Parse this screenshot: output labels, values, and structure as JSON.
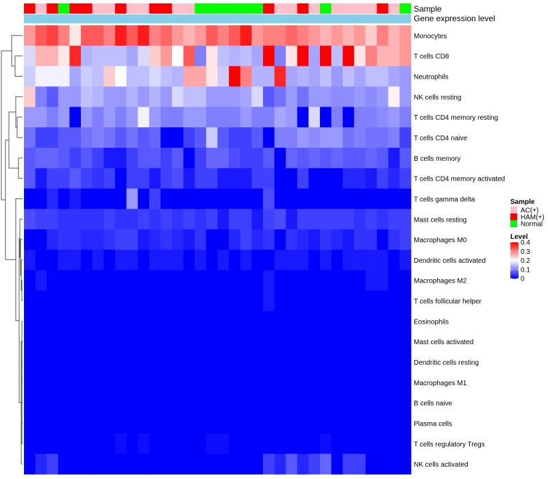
{
  "chart_data": {
    "type": "heatmap",
    "annotation_rows": {
      "sample": "Sample",
      "expression": "Gene expression level"
    },
    "n_columns": 34,
    "sample_groups": [
      "H",
      "A",
      "H",
      "N",
      "H",
      "H",
      "A",
      "A",
      "H",
      "A",
      "A",
      "H",
      "H",
      "A",
      "A",
      "N",
      "N",
      "N",
      "N",
      "N",
      "N",
      "H",
      "A",
      "A",
      "H",
      "A",
      "N",
      "A",
      "A",
      "A",
      "A",
      "H",
      "A",
      "N"
    ],
    "rows": [
      "Monocytes",
      "T cells CD8",
      "Neutrophils",
      "NK cells resting",
      "T cells CD4 memory resting",
      "T cells CD4 naive",
      "B cells memory",
      "T cells CD4 memory activated",
      "T cells gamma delta",
      "Mast cells resting",
      "Macrophages M0",
      "Dendritic cells activated",
      "Macrophages M2",
      "T cells follicular helper",
      "Eosinophils",
      "Mast cells activated",
      "Dendritic cells resting",
      "Macrophages M1",
      "B cells naive",
      "Plasma cells",
      "T cells regulatory  Tregs",
      "NK cells activated"
    ],
    "values": [
      [
        0.28,
        0.33,
        0.35,
        0.3,
        0.22,
        0.33,
        0.33,
        0.3,
        0.38,
        0.33,
        0.38,
        0.3,
        0.32,
        0.28,
        0.26,
        0.28,
        0.33,
        0.3,
        0.33,
        0.38,
        0.28,
        0.3,
        0.3,
        0.32,
        0.3,
        0.28,
        0.26,
        0.28,
        0.26,
        0.28,
        0.24,
        0.3,
        0.26,
        0.28
      ],
      [
        0.17,
        0.26,
        0.26,
        0.22,
        0.37,
        0.14,
        0.15,
        0.15,
        0.15,
        0.13,
        0.17,
        0.24,
        0.28,
        0.2,
        0.33,
        0.1,
        0.22,
        0.15,
        0.14,
        0.15,
        0.13,
        0.4,
        0.1,
        0.22,
        0.4,
        0.13,
        0.4,
        0.15,
        0.4,
        0.22,
        0.3,
        0.26,
        0.26,
        0.28
      ],
      [
        0.16,
        0.19,
        0.19,
        0.19,
        0.13,
        0.16,
        0.15,
        0.24,
        0.2,
        0.15,
        0.15,
        0.17,
        0.15,
        0.14,
        0.27,
        0.27,
        0.22,
        0.16,
        0.4,
        0.3,
        0.14,
        0.14,
        0.37,
        0.13,
        0.14,
        0.13,
        0.15,
        0.12,
        0.15,
        0.13,
        0.15,
        0.15,
        0.13,
        0.12
      ],
      [
        0.24,
        0.1,
        0.07,
        0.12,
        0.12,
        0.15,
        0.14,
        0.12,
        0.12,
        0.14,
        0.12,
        0.14,
        0.12,
        0.17,
        0.15,
        0.15,
        0.12,
        0.12,
        0.12,
        0.13,
        0.17,
        0.07,
        0.09,
        0.12,
        0.09,
        0.12,
        0.12,
        0.11,
        0.11,
        0.12,
        0.11,
        0.12,
        0.21,
        0.12
      ],
      [
        0.12,
        0.12,
        0.1,
        0.12,
        0.0,
        0.12,
        0.1,
        0.12,
        0.1,
        0.12,
        0.19,
        0.12,
        0.1,
        0.1,
        0.12,
        0.12,
        0.1,
        0.1,
        0.1,
        0.12,
        0.1,
        0.1,
        0.13,
        0.12,
        0.0,
        0.17,
        0.0,
        0.1,
        0.0,
        0.1,
        0.1,
        0.11,
        0.12,
        0.1
      ],
      [
        0.09,
        0.05,
        0.05,
        0.07,
        0.07,
        0.09,
        0.1,
        0.09,
        0.07,
        0.09,
        0.07,
        0.08,
        0.0,
        0.0,
        0.05,
        0.07,
        0.16,
        0.07,
        0.05,
        0.05,
        0.07,
        0.0,
        0.1,
        0.1,
        0.12,
        0.11,
        0.12,
        0.12,
        0.09,
        0.1,
        0.09,
        0.09,
        0.1,
        0.05
      ],
      [
        0.07,
        0.08,
        0.08,
        0.07,
        0.05,
        0.07,
        0.05,
        0.02,
        0.02,
        0.05,
        0.07,
        0.07,
        0.05,
        0.07,
        0.0,
        0.05,
        0.08,
        0.08,
        0.06,
        0.05,
        0.05,
        0.07,
        0.0,
        0.08,
        0.07,
        0.08,
        0.07,
        0.08,
        0.07,
        0.07,
        0.08,
        0.07,
        0.02,
        0.07
      ],
      [
        0.07,
        0.02,
        0.05,
        0.05,
        0.07,
        0.05,
        0.04,
        0.05,
        0.0,
        0.05,
        0.05,
        0.02,
        0.05,
        0.06,
        0.02,
        0.05,
        0.05,
        0.02,
        0.02,
        0.02,
        0.05,
        0.05,
        0.0,
        0.0,
        0.05,
        0.0,
        0.0,
        0.0,
        0.03,
        0.03,
        0.02,
        0.05,
        0.03,
        0.05
      ],
      [
        0.0,
        0.0,
        0.03,
        0.0,
        0.02,
        0.0,
        0.0,
        0.0,
        0.0,
        0.12,
        0.0,
        0.05,
        0.0,
        0.0,
        0.0,
        0.0,
        0.0,
        0.0,
        0.0,
        0.0,
        0.0,
        0.06,
        0.0,
        0.0,
        0.0,
        0.0,
        0.0,
        0.0,
        0.0,
        0.0,
        0.0,
        0.0,
        0.0,
        0.0
      ],
      [
        0.06,
        0.05,
        0.05,
        0.04,
        0.04,
        0.04,
        0.04,
        0.05,
        0.04,
        0.04,
        0.05,
        0.04,
        0.05,
        0.04,
        0.05,
        0.04,
        0.05,
        0.02,
        0.05,
        0.05,
        0.02,
        0.05,
        0.06,
        0.02,
        0.05,
        0.05,
        0.05,
        0.05,
        0.05,
        0.04,
        0.05,
        0.04,
        0.05,
        0.05
      ],
      [
        0.0,
        0.0,
        0.03,
        0.04,
        0.04,
        0.03,
        0.03,
        0.04,
        0.05,
        0.05,
        0.02,
        0.03,
        0.04,
        0.03,
        0.02,
        0.04,
        0.0,
        0.0,
        0.03,
        0.05,
        0.03,
        0.04,
        0.0,
        0.04,
        0.03,
        0.02,
        0.04,
        0.03,
        0.02,
        0.04,
        0.04,
        0.0,
        0.04,
        0.05
      ],
      [
        0.02,
        0.0,
        0.0,
        0.02,
        0.02,
        0.0,
        0.02,
        0.0,
        0.02,
        0.02,
        0.0,
        0.02,
        0.02,
        0.02,
        0.0,
        0.02,
        0.0,
        0.02,
        0.0,
        0.02,
        0.0,
        0.0,
        0.02,
        0.02,
        0.02,
        0.0,
        0.02,
        0.0,
        0.02,
        0.02,
        0.02,
        0.02,
        0.0,
        0.02
      ],
      [
        0.0,
        0.02,
        0.0,
        0.0,
        0.0,
        0.0,
        0.0,
        0.0,
        0.0,
        0.0,
        0.0,
        0.0,
        0.0,
        0.0,
        0.0,
        0.0,
        0.0,
        0.0,
        0.0,
        0.0,
        0.0,
        0.02,
        0.0,
        0.0,
        0.0,
        0.0,
        0.0,
        0.0,
        0.0,
        0.0,
        0.02,
        0.02,
        0.0,
        0.0
      ],
      [
        0.0,
        0.0,
        0.0,
        0.0,
        0.0,
        0.0,
        0.0,
        0.0,
        0.0,
        0.0,
        0.0,
        0.0,
        0.0,
        0.0,
        0.0,
        0.0,
        0.0,
        0.0,
        0.0,
        0.0,
        0.0,
        0.02,
        0.0,
        0.0,
        0.0,
        0.0,
        0.0,
        0.0,
        0.0,
        0.0,
        0.0,
        0.0,
        0.0,
        0.0
      ],
      [
        0.0,
        0.0,
        0.0,
        0.0,
        0.0,
        0.0,
        0.0,
        0.0,
        0.0,
        0.0,
        0.0,
        0.0,
        0.0,
        0.0,
        0.0,
        0.0,
        0.0,
        0.0,
        0.0,
        0.0,
        0.0,
        0.0,
        0.0,
        0.0,
        0.0,
        0.0,
        0.0,
        0.0,
        0.0,
        0.0,
        0.0,
        0.0,
        0.0,
        0.0
      ],
      [
        0.0,
        0.0,
        0.0,
        0.0,
        0.0,
        0.0,
        0.0,
        0.0,
        0.0,
        0.0,
        0.0,
        0.0,
        0.0,
        0.0,
        0.0,
        0.0,
        0.0,
        0.0,
        0.0,
        0.0,
        0.0,
        0.0,
        0.0,
        0.0,
        0.0,
        0.0,
        0.0,
        0.0,
        0.0,
        0.0,
        0.0,
        0.0,
        0.0,
        0.0
      ],
      [
        0.0,
        0.0,
        0.0,
        0.0,
        0.0,
        0.0,
        0.0,
        0.0,
        0.0,
        0.0,
        0.0,
        0.0,
        0.0,
        0.0,
        0.0,
        0.0,
        0.0,
        0.0,
        0.0,
        0.0,
        0.0,
        0.0,
        0.0,
        0.0,
        0.0,
        0.0,
        0.0,
        0.0,
        0.0,
        0.0,
        0.0,
        0.0,
        0.0,
        0.0
      ],
      [
        0.0,
        0.0,
        0.0,
        0.0,
        0.0,
        0.0,
        0.0,
        0.0,
        0.0,
        0.0,
        0.0,
        0.0,
        0.0,
        0.0,
        0.0,
        0.0,
        0.0,
        0.0,
        0.0,
        0.0,
        0.0,
        0.0,
        0.0,
        0.0,
        0.0,
        0.0,
        0.0,
        0.0,
        0.0,
        0.0,
        0.0,
        0.0,
        0.0,
        0.0
      ],
      [
        0.0,
        0.0,
        0.0,
        0.0,
        0.0,
        0.0,
        0.0,
        0.0,
        0.0,
        0.0,
        0.0,
        0.0,
        0.0,
        0.0,
        0.0,
        0.0,
        0.0,
        0.0,
        0.0,
        0.0,
        0.0,
        0.0,
        0.0,
        0.0,
        0.0,
        0.0,
        0.0,
        0.0,
        0.0,
        0.0,
        0.0,
        0.0,
        0.0,
        0.0
      ],
      [
        0.0,
        0.0,
        0.0,
        0.0,
        0.0,
        0.0,
        0.0,
        0.0,
        0.0,
        0.0,
        0.0,
        0.0,
        0.0,
        0.0,
        0.0,
        0.0,
        0.0,
        0.0,
        0.0,
        0.0,
        0.0,
        0.0,
        0.0,
        0.0,
        0.0,
        0.0,
        0.0,
        0.0,
        0.0,
        0.0,
        0.0,
        0.0,
        0.0,
        0.0
      ],
      [
        0.0,
        0.0,
        0.0,
        0.0,
        0.0,
        0.0,
        0.0,
        0.0,
        0.01,
        0.0,
        0.01,
        0.0,
        0.0,
        0.0,
        0.0,
        0.0,
        0.01,
        0.01,
        0.0,
        0.0,
        0.0,
        0.0,
        0.0,
        0.0,
        0.0,
        0.0,
        0.01,
        0.0,
        0.0,
        0.0,
        0.0,
        0.0,
        0.0,
        0.0
      ],
      [
        0.0,
        0.03,
        0.05,
        0.0,
        0.0,
        0.0,
        0.0,
        0.0,
        0.0,
        0.0,
        0.0,
        0.0,
        0.0,
        0.0,
        0.0,
        0.0,
        0.0,
        0.0,
        0.0,
        0.0,
        0.0,
        0.05,
        0.03,
        0.07,
        0.03,
        0.05,
        0.08,
        0.0,
        0.05,
        0.05,
        0.0,
        0.0,
        0.0,
        0.0
      ]
    ],
    "color_scale": {
      "min": 0,
      "mid": 0.2,
      "max": 0.4,
      "low_color": "#0000ff",
      "mid_color": "#ffffff",
      "high_color": "#ff0000"
    },
    "legend": {
      "sample_title": "Sample",
      "sample_items": [
        {
          "key": "A",
          "label": "AC(+)",
          "color": "#ffc0cb"
        },
        {
          "key": "H",
          "label": "HAM(+)",
          "color": "#ff0000"
        },
        {
          "key": "N",
          "label": "Normal",
          "color": "#00ff00"
        }
      ],
      "level_title": "Level",
      "level_ticks": [
        "0.4",
        "0.3",
        "0.2",
        "0.1",
        "0"
      ],
      "level_tick_values": [
        0.4,
        0.3,
        0.2,
        0.1,
        0
      ]
    },
    "expression_bar_color": "#87ceeb",
    "dendrogram_color": "#555555"
  }
}
